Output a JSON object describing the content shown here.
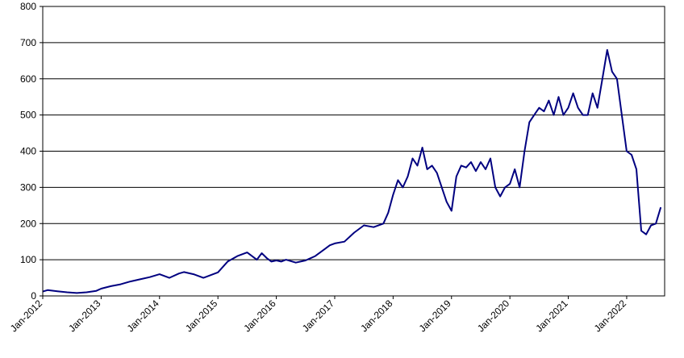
{
  "chart_data": {
    "type": "line",
    "title": "",
    "xlabel": "",
    "ylabel": "",
    "ylim": [
      0,
      800
    ],
    "yticks": [
      0,
      100,
      200,
      300,
      400,
      500,
      600,
      700,
      800
    ],
    "xticks": [
      "Jan-2012",
      "Jan-2013",
      "Jan-2014",
      "Jan-2015",
      "Jan-2016",
      "Jan-2017",
      "Jan-2018",
      "Jan-2019",
      "Jan-2020",
      "Jan-2021",
      "Jan-2022"
    ],
    "xrange": [
      "2012-01",
      "2022-08"
    ],
    "grid": "horizontal",
    "legend": "none",
    "line_color": "#000080",
    "series": [
      {
        "x": [
          "2012-01",
          "2012-02",
          "2012-04",
          "2012-06",
          "2012-08",
          "2012-10",
          "2012-12",
          "2013-01",
          "2013-03",
          "2013-05",
          "2013-07",
          "2013-09",
          "2013-11",
          "2014-01",
          "2014-03",
          "2014-05",
          "2014-06",
          "2014-08",
          "2014-10",
          "2014-12",
          "2015-01",
          "2015-03",
          "2015-05",
          "2015-07",
          "2015-08",
          "2015-09",
          "2015-10",
          "2015-11",
          "2015-12",
          "2016-01",
          "2016-02",
          "2016-03",
          "2016-05",
          "2016-07",
          "2016-09",
          "2016-11",
          "2016-12",
          "2017-01",
          "2017-03",
          "2017-05",
          "2017-07",
          "2017-09",
          "2017-11",
          "2017-12",
          "2018-01",
          "2018-02",
          "2018-03",
          "2018-04",
          "2018-05",
          "2018-06",
          "2018-07",
          "2018-08",
          "2018-09",
          "2018-10",
          "2018-11",
          "2018-12",
          "2019-01",
          "2019-02",
          "2019-03",
          "2019-04",
          "2019-05",
          "2019-06",
          "2019-07",
          "2019-08",
          "2019-09",
          "2019-10",
          "2019-11",
          "2019-12",
          "2020-01",
          "2020-02",
          "2020-03",
          "2020-04",
          "2020-05",
          "2020-06",
          "2020-07",
          "2020-08",
          "2020-09",
          "2020-10",
          "2020-11",
          "2020-12",
          "2021-01",
          "2021-02",
          "2021-03",
          "2021-04",
          "2021-05",
          "2021-06",
          "2021-07",
          "2021-08",
          "2021-09",
          "2021-10",
          "2021-11",
          "2021-12",
          "2022-01",
          "2022-02",
          "2022-03",
          "2022-04",
          "2022-05",
          "2022-06",
          "2022-07",
          "2022-08"
        ],
        "values": [
          12,
          16,
          13,
          10,
          8,
          10,
          14,
          20,
          27,
          32,
          40,
          46,
          52,
          60,
          50,
          62,
          66,
          60,
          50,
          60,
          65,
          95,
          110,
          120,
          110,
          100,
          118,
          105,
          95,
          98,
          95,
          100,
          92,
          98,
          110,
          130,
          140,
          145,
          150,
          175,
          195,
          190,
          200,
          230,
          280,
          320,
          300,
          330,
          380,
          360,
          410,
          350,
          360,
          340,
          300,
          260,
          235,
          330,
          360,
          355,
          370,
          345,
          370,
          350,
          380,
          300,
          275,
          300,
          310,
          350,
          300,
          400,
          480,
          500,
          520,
          510,
          540,
          500,
          550,
          500,
          520,
          560,
          520,
          500,
          500,
          560,
          520,
          600,
          680,
          620,
          600,
          500,
          400,
          390,
          350,
          180,
          170,
          195,
          200,
          245
        ]
      }
    ]
  }
}
